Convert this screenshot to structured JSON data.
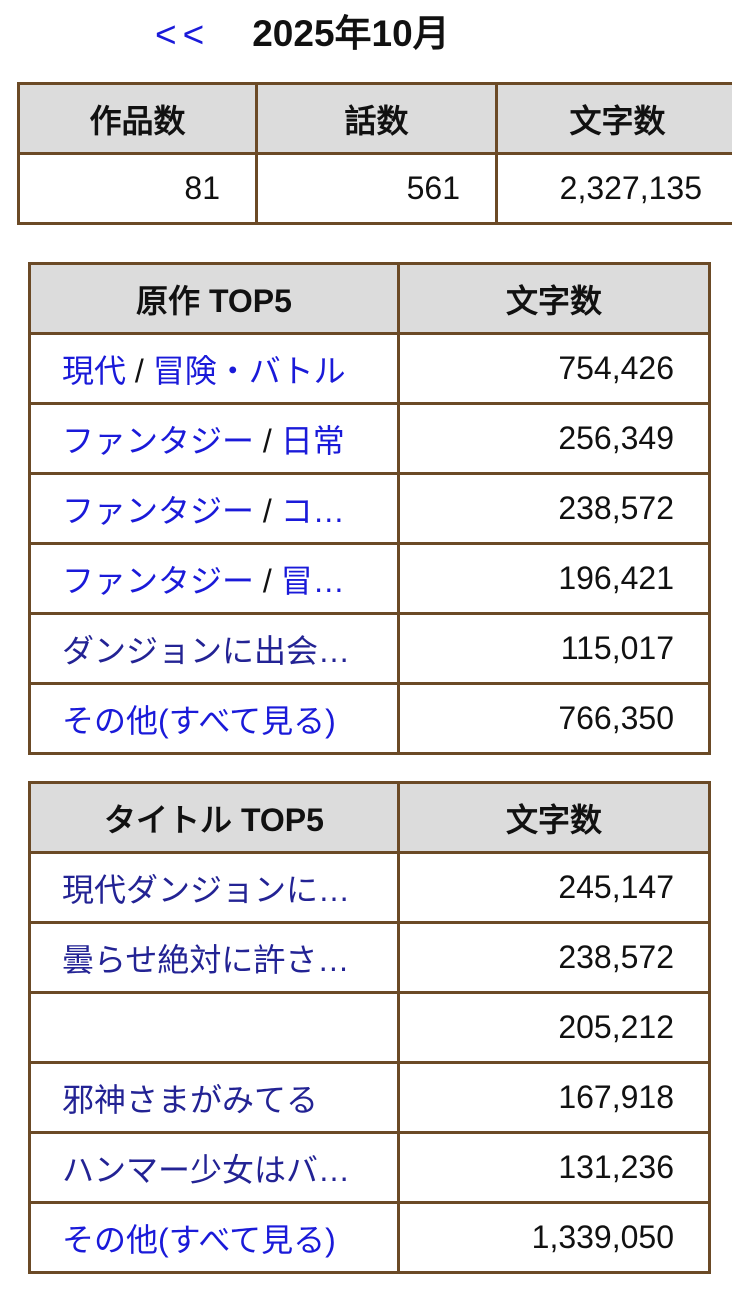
{
  "theme": {
    "link_color": "#1a1ad9",
    "visited_link_color": "#232394",
    "table_border_color": "#6b4a26",
    "table_header_bg": "#dcdcdc",
    "text_color": "#111111",
    "background_color": "#ffffff"
  },
  "header": {
    "prev_label": "<<",
    "title": "2025年10月"
  },
  "summary_table": {
    "headers": [
      "作品数",
      "話数",
      "文字数"
    ],
    "values": [
      "81",
      "561",
      "2,327,135"
    ]
  },
  "genre_table": {
    "headers": [
      "原作 TOP5",
      "文字数"
    ],
    "rows": [
      {
        "parts": [
          {
            "text": "現代",
            "link": true,
            "visited": false
          },
          {
            "text": " / ",
            "link": false
          },
          {
            "text": "冒険・バトル",
            "link": true,
            "visited": false
          }
        ],
        "value": "754,426"
      },
      {
        "parts": [
          {
            "text": "ファンタジー",
            "link": true,
            "visited": false
          },
          {
            "text": " / ",
            "link": false
          },
          {
            "text": "日常",
            "link": true,
            "visited": false
          }
        ],
        "value": "256,349"
      },
      {
        "parts": [
          {
            "text": "ファンタジー",
            "link": true,
            "visited": false
          },
          {
            "text": " / ",
            "link": false
          },
          {
            "text": "コ…",
            "link": true,
            "visited": false
          }
        ],
        "value": "238,572"
      },
      {
        "parts": [
          {
            "text": "ファンタジー",
            "link": true,
            "visited": false
          },
          {
            "text": " / ",
            "link": false
          },
          {
            "text": "冒…",
            "link": true,
            "visited": false
          }
        ],
        "value": "196,421"
      },
      {
        "parts": [
          {
            "text": "ダンジョンに出会…",
            "link": true,
            "visited": true
          }
        ],
        "value": "115,017"
      },
      {
        "parts": [
          {
            "text": "その他(すべて見る)",
            "link": true,
            "visited": false
          }
        ],
        "value": "766,350"
      }
    ]
  },
  "title_table": {
    "headers": [
      "タイトル TOP5",
      "文字数"
    ],
    "rows": [
      {
        "parts": [
          {
            "text": "現代ダンジョンに…",
            "link": true,
            "visited": true
          }
        ],
        "value": "245,147"
      },
      {
        "parts": [
          {
            "text": "曇らせ絶対に許さ…",
            "link": true,
            "visited": true
          }
        ],
        "value": "238,572"
      },
      {
        "parts": [],
        "value": "205,212"
      },
      {
        "parts": [
          {
            "text": "邪神さまがみてる",
            "link": true,
            "visited": true
          }
        ],
        "value": "167,918"
      },
      {
        "parts": [
          {
            "text": "ハンマー少女はバ…",
            "link": true,
            "visited": true
          }
        ],
        "value": "131,236"
      },
      {
        "parts": [
          {
            "text": "その他(すべて見る)",
            "link": true,
            "visited": false
          }
        ],
        "value": "1,339,050"
      }
    ]
  }
}
